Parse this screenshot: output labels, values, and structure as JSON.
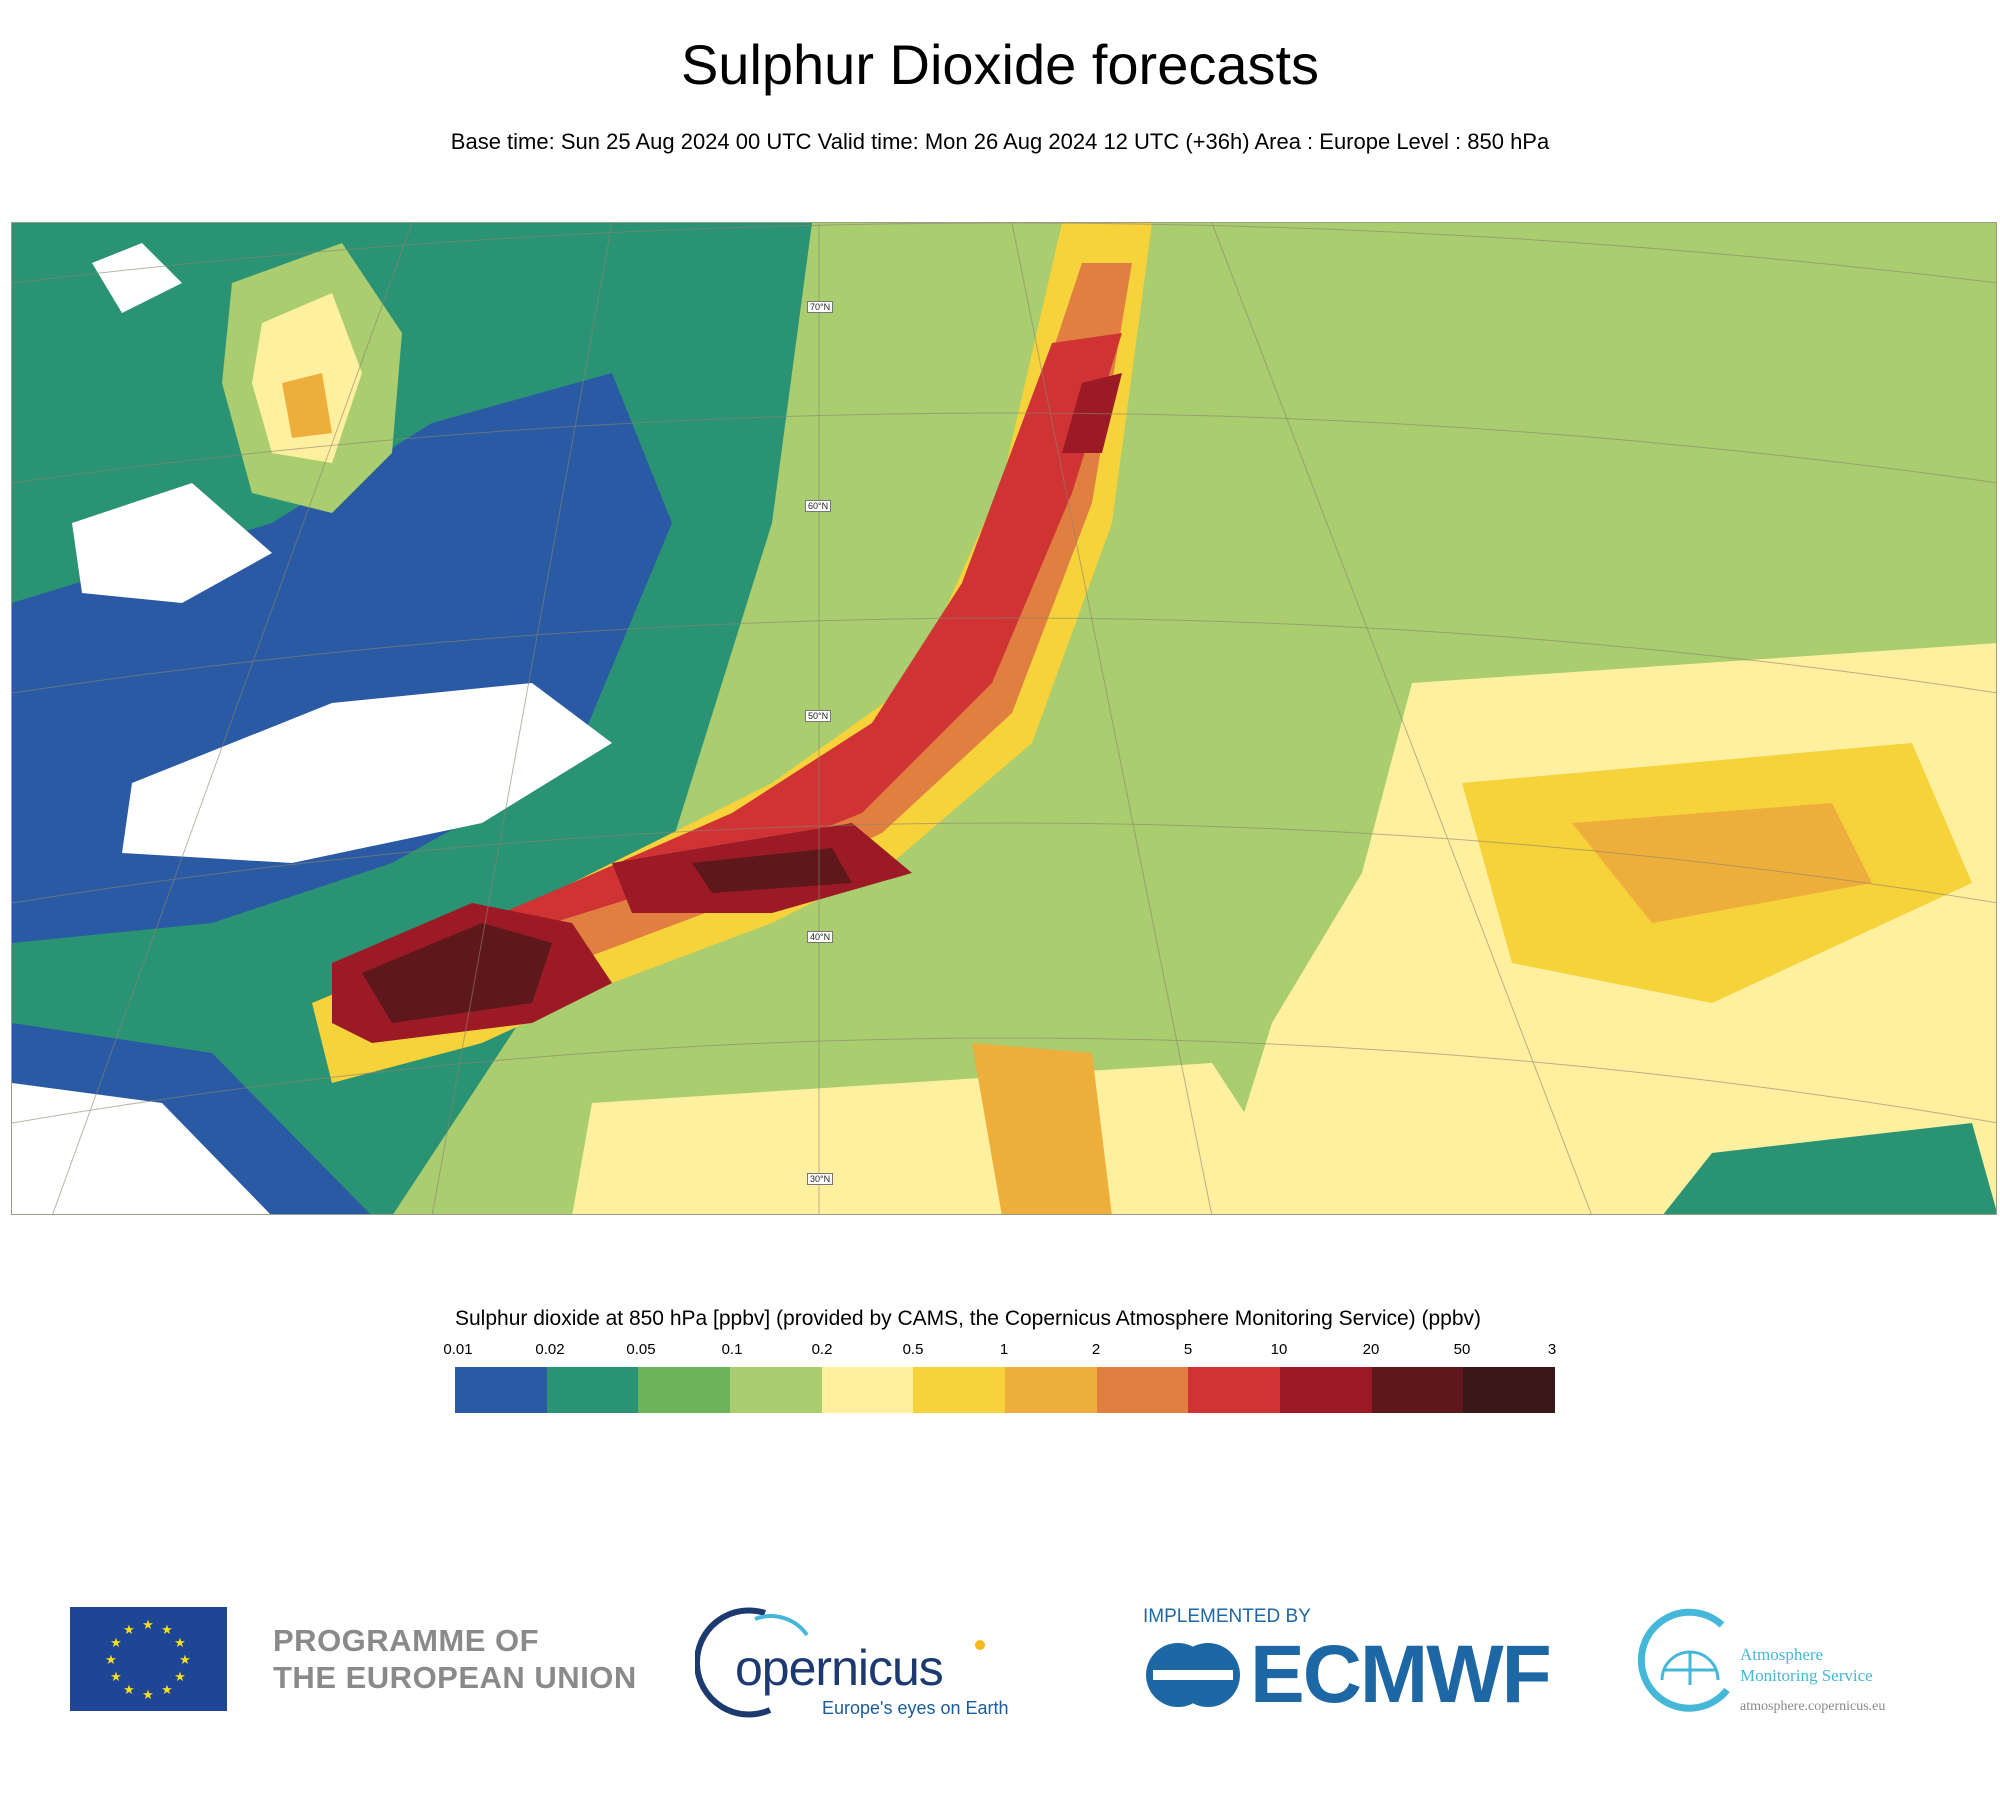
{
  "title": "Sulphur Dioxide forecasts",
  "subtitle": "Base time: Sun 25 Aug 2024 00 UTC Valid time: Mon 26 Aug 2024 12 UTC (+36h) Area : Europe Level : 850 hPa",
  "map": {
    "lat_labels": [
      "70°N",
      "60°N",
      "50°N",
      "40°N",
      "30°N"
    ]
  },
  "legend": {
    "title": "Sulphur dioxide at 850 hPa [ppbv] (provided by CAMS, the Copernicus Atmosphere Monitoring Service) (ppbv)",
    "ticks": [
      "0.01",
      "0.02",
      "0.05",
      "0.1",
      "0.2",
      "0.5",
      "1",
      "2",
      "5",
      "10",
      "20",
      "50",
      "3"
    ],
    "colors": [
      "#2a5aa3",
      "#2a9373",
      "#6cb35a",
      "#a9cd6f",
      "#fff0a0",
      "#f6d23b",
      "#eeae3b",
      "#e17f40",
      "#cf3333",
      "#9b1a25",
      "#5e181b",
      "#3a1818"
    ]
  },
  "footer": {
    "eu_text_line1": "PROGRAMME OF",
    "eu_text_line2": "THE EUROPEAN UNION",
    "copernicus_word": "opernicus",
    "copernicus_tagline": "Europe's eyes on Earth",
    "implemented_by": "IMPLEMENTED BY",
    "ecmwf": "ECMWF",
    "ams_name_line1": "Atmosphere",
    "ams_name_line2": "Monitoring Service",
    "ams_url": "atmosphere.copernicus.eu"
  }
}
